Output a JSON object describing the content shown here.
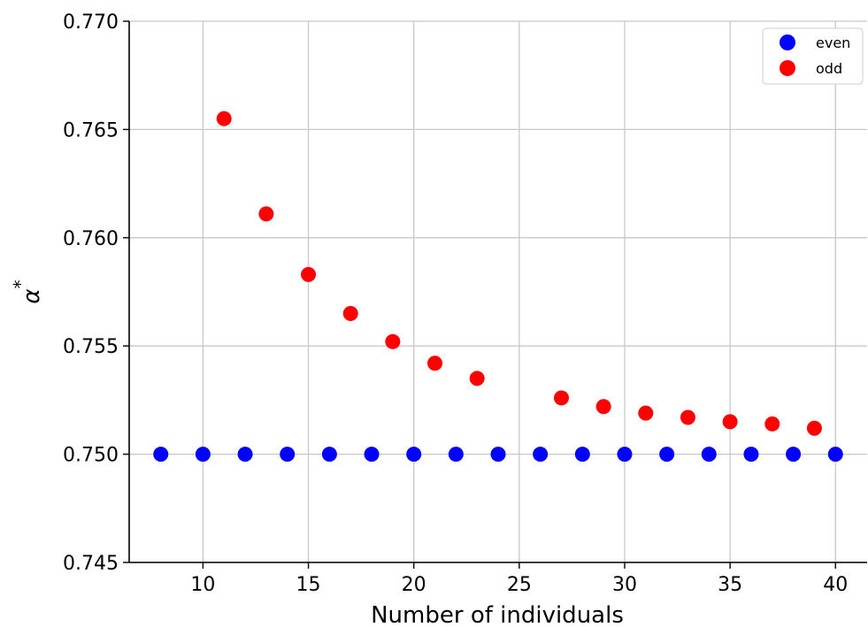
{
  "chart_data": {
    "type": "scatter",
    "xlabel": "Number of individuals",
    "ylabel": "α*",
    "ylabel_base": "α",
    "ylabel_sup": "*",
    "xlim": [
      6.5,
      41.5
    ],
    "ylim": [
      0.745,
      0.77
    ],
    "xticks": [
      10,
      15,
      20,
      25,
      30,
      35,
      40
    ],
    "xtick_labels": [
      "10",
      "15",
      "20",
      "25",
      "30",
      "35",
      "40"
    ],
    "yticks": [
      0.745,
      0.75,
      0.755,
      0.76,
      0.765,
      0.77
    ],
    "ytick_labels": [
      "0.745",
      "0.750",
      "0.755",
      "0.760",
      "0.765",
      "0.770"
    ],
    "grid": true,
    "legend_position": "top-right",
    "series": [
      {
        "name": "even",
        "color": "#0000ff",
        "x": [
          8,
          10,
          12,
          14,
          16,
          18,
          20,
          22,
          24,
          26,
          28,
          30,
          32,
          34,
          36,
          38,
          40
        ],
        "y": [
          0.75,
          0.75,
          0.75,
          0.75,
          0.75,
          0.75,
          0.75,
          0.75,
          0.75,
          0.75,
          0.75,
          0.75,
          0.75,
          0.75,
          0.75,
          0.75,
          0.75
        ]
      },
      {
        "name": "odd",
        "color": "#ff0000",
        "x": [
          11,
          13,
          15,
          17,
          19,
          21,
          23,
          27,
          29,
          31,
          33,
          35,
          37,
          39
        ],
        "y": [
          0.7655,
          0.7611,
          0.7583,
          0.7565,
          0.7552,
          0.7542,
          0.7535,
          0.7526,
          0.7522,
          0.7519,
          0.7517,
          0.7515,
          0.7514,
          0.7512
        ]
      }
    ]
  }
}
